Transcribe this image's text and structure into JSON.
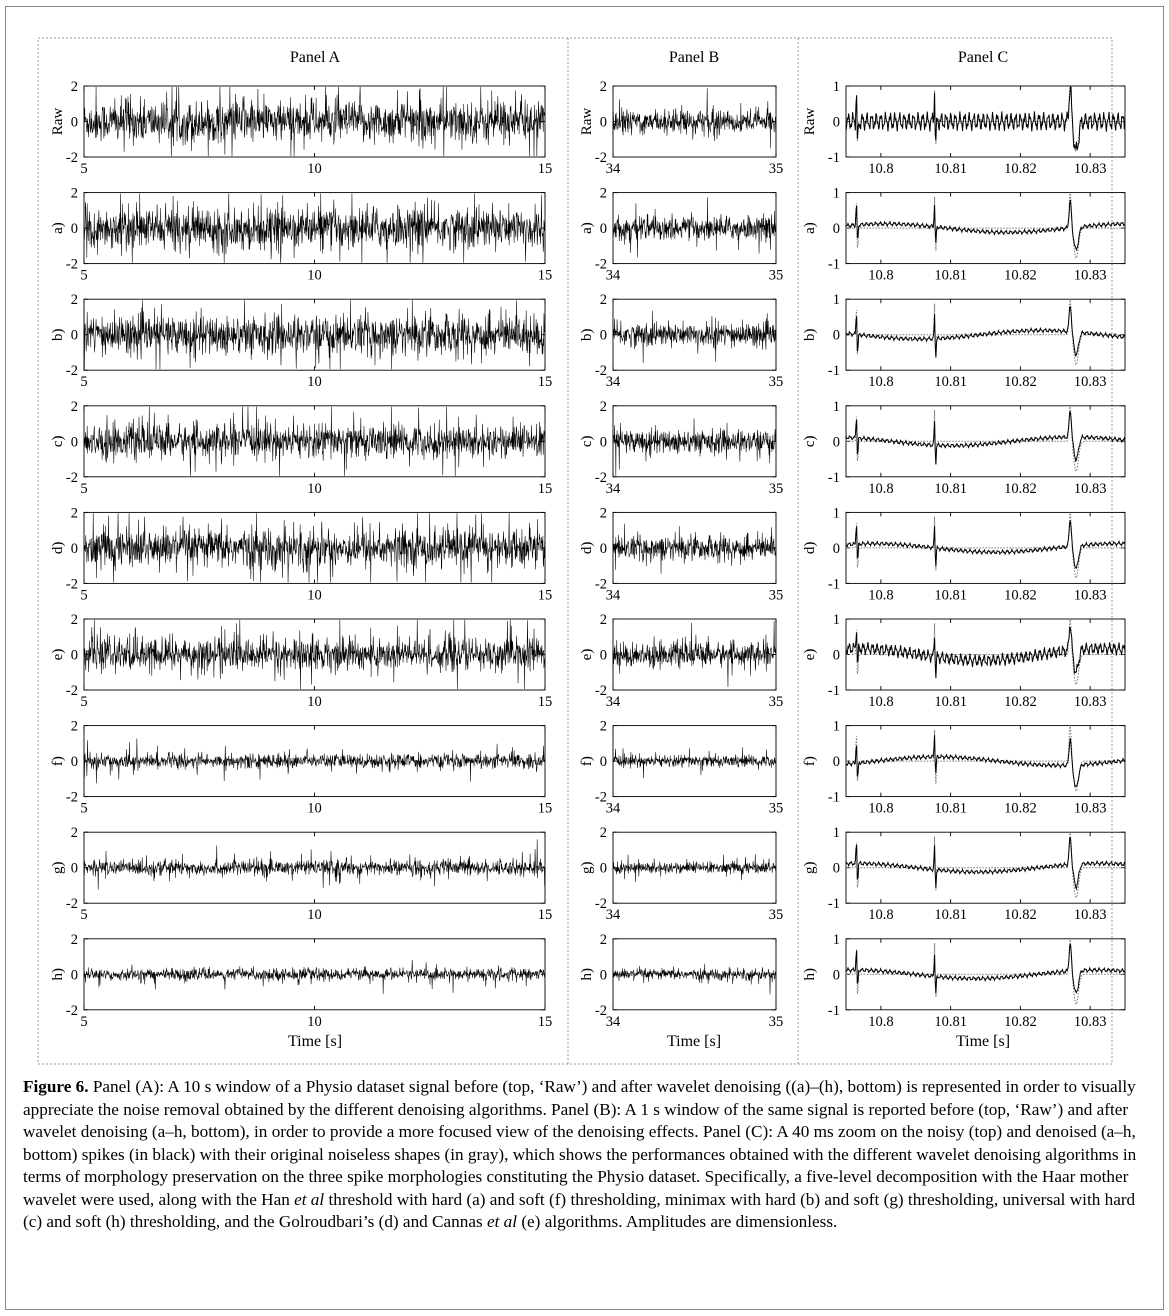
{
  "figure": {
    "panels": [
      {
        "id": "A",
        "title": "Panel A",
        "xlabel": "Time [s]"
      },
      {
        "id": "B",
        "title": "Panel B",
        "xlabel": "Time [s]"
      },
      {
        "id": "C",
        "title": "Panel C",
        "xlabel": "Time [s]"
      }
    ],
    "row_labels": [
      "Raw",
      "a)",
      "b)",
      "c)",
      "d)",
      "e)",
      "f)",
      "g)",
      "h)"
    ]
  },
  "chart_data": [
    {
      "type": "line",
      "panel": "A",
      "title": "Panel A",
      "xlabel": "Time [s]",
      "xlim": [
        5,
        15
      ],
      "xticks": [
        5,
        10,
        15
      ],
      "ylim": [
        -2,
        2
      ],
      "yticks": [
        -2,
        0,
        2
      ],
      "rows": [
        "Raw",
        "a)",
        "b)",
        "c)",
        "d)",
        "e)",
        "f)",
        "g)",
        "h)"
      ],
      "row_amplitudes": [
        1.6,
        1.6,
        1.5,
        1.3,
        1.5,
        1.3,
        0.55,
        0.6,
        0.45
      ]
    },
    {
      "type": "line",
      "panel": "B",
      "title": "Panel B",
      "xlabel": "Time [s]",
      "xlim": [
        34,
        35
      ],
      "xticks": [
        34,
        35
      ],
      "ylim": [
        -2,
        2
      ],
      "yticks": [
        -2,
        0,
        2
      ],
      "rows": [
        "Raw",
        "a)",
        "b)",
        "c)",
        "d)",
        "e)",
        "f)",
        "g)",
        "h)"
      ],
      "row_amplitudes": [
        0.9,
        0.9,
        0.9,
        0.9,
        0.9,
        0.9,
        0.45,
        0.45,
        0.4
      ]
    },
    {
      "type": "line",
      "panel": "C",
      "title": "Panel C",
      "xlabel": "Time [s]",
      "xlim": [
        10.795,
        10.835
      ],
      "xticks": [
        10.8,
        10.81,
        10.82,
        10.83
      ],
      "ylim": [
        -1,
        1
      ],
      "yticks": [
        -1,
        0,
        1
      ],
      "raw_yticks": [
        0,
        1
      ],
      "rows": [
        "Raw",
        "a)",
        "b)",
        "c)",
        "d)",
        "e)",
        "f)",
        "g)",
        "h)"
      ],
      "spike_times": [
        10.7965,
        10.8077,
        10.8275
      ],
      "series": [
        {
          "style": "solid",
          "color": "#000000"
        },
        {
          "style": "dotted",
          "color": "#777777"
        }
      ]
    }
  ],
  "caption": {
    "label": "Figure 6.",
    "parts": [
      {
        "t": " Panel (A): A 10 s window of a Physio dataset signal before (top, ‘Raw’) and after wavelet denoising ((a)–(h), bottom) is represented in order to visually appreciate the noise removal obtained by the different denoising algorithms. Panel (B): A 1 s window of the same signal is reported before (top, ‘Raw’) and after wavelet denoising (a–h, bottom), in order to provide a more focused view of the denoising effects. Panel (C): A 40 ms zoom on the noisy (top) and denoised (a–h, bottom) spikes (in black) with their original noiseless shapes (in gray), which shows the performances obtained with the different wavelet denoising algorithms in terms of morphology preservation on the three spike morphologies constituting the Physio dataset. Specifically, a five-level decomposition with the Haar mother wavelet were used, along with the Han "
      },
      {
        "t": "et al",
        "i": true
      },
      {
        "t": " threshold with hard (a) and soft (f) thresholding, minimax with hard (b) and soft (g) thresholding, universal with hard (c) and soft (h) thresholding, and the Golroudbari’s (d) and Cannas "
      },
      {
        "t": "et al",
        "i": true
      },
      {
        "t": " (e) algorithms. Amplitudes are dimensionless."
      }
    ]
  }
}
